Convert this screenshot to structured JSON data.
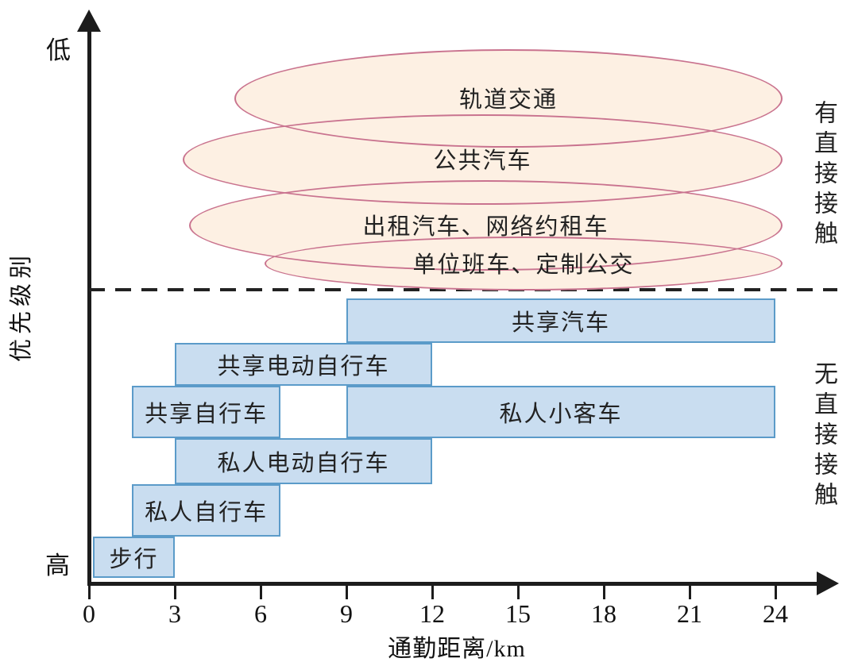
{
  "colors": {
    "background": "#ffffff",
    "axis": "#1c1c1c",
    "ellipse_fill": "#fdf0e3",
    "ellipse_stroke": "#c9738f",
    "bar_fill": "#c9ddf0",
    "bar_stroke": "#5b9bc9",
    "text": "#222222"
  },
  "chart_data": {
    "type": "custom",
    "subtype": "transport-mode-vs-commute-distance-priority-diagram",
    "title": "",
    "xlabel": "通勤距离/km",
    "ylabel": "优先级别",
    "x_ticks": [
      0,
      3,
      6,
      9,
      12,
      15,
      18,
      21,
      24
    ],
    "x_range": [
      0,
      24
    ],
    "y_axis_top_label": "低",
    "y_axis_bottom_label": "高",
    "y_axis_meaning": "优先级别从下(高)到上(低)",
    "grid": false,
    "legend": false,
    "separator": {
      "style": "dashed-line",
      "meaning": "分隔有直接接触与无直接接触的出行方式"
    },
    "groups": [
      {
        "name": "有直接接触",
        "shape": "ellipse",
        "label_position": "right-vertical",
        "modes": [
          {
            "label": "轨道交通",
            "x_km_approx": [
              5.1,
              24.2
            ]
          },
          {
            "label": "公共汽车",
            "x_km_approx": [
              3.3,
              24.2
            ]
          },
          {
            "label": "出租汽车、网络约租车",
            "x_km_approx": [
              3.5,
              24.2
            ]
          },
          {
            "label": "单位班车、定制公交",
            "x_km_approx": [
              6.1,
              24.2
            ]
          }
        ]
      },
      {
        "name": "无直接接触",
        "shape": "bar",
        "label_position": "right-vertical",
        "modes": [
          {
            "label": "共享汽车",
            "x_km": [
              9,
              24
            ]
          },
          {
            "label": "共享电动自行车",
            "x_km": [
              3,
              12
            ]
          },
          {
            "label": "共享自行车",
            "x_km": [
              1.5,
              6.7
            ]
          },
          {
            "label": "私人小客车",
            "x_km": [
              9,
              24
            ]
          },
          {
            "label": "私人电动自行车",
            "x_km": [
              3,
              12
            ]
          },
          {
            "label": "私人自行车",
            "x_km": [
              1.5,
              6.7
            ]
          },
          {
            "label": "步行",
            "x_km": [
              0,
              3
            ]
          }
        ]
      }
    ]
  }
}
